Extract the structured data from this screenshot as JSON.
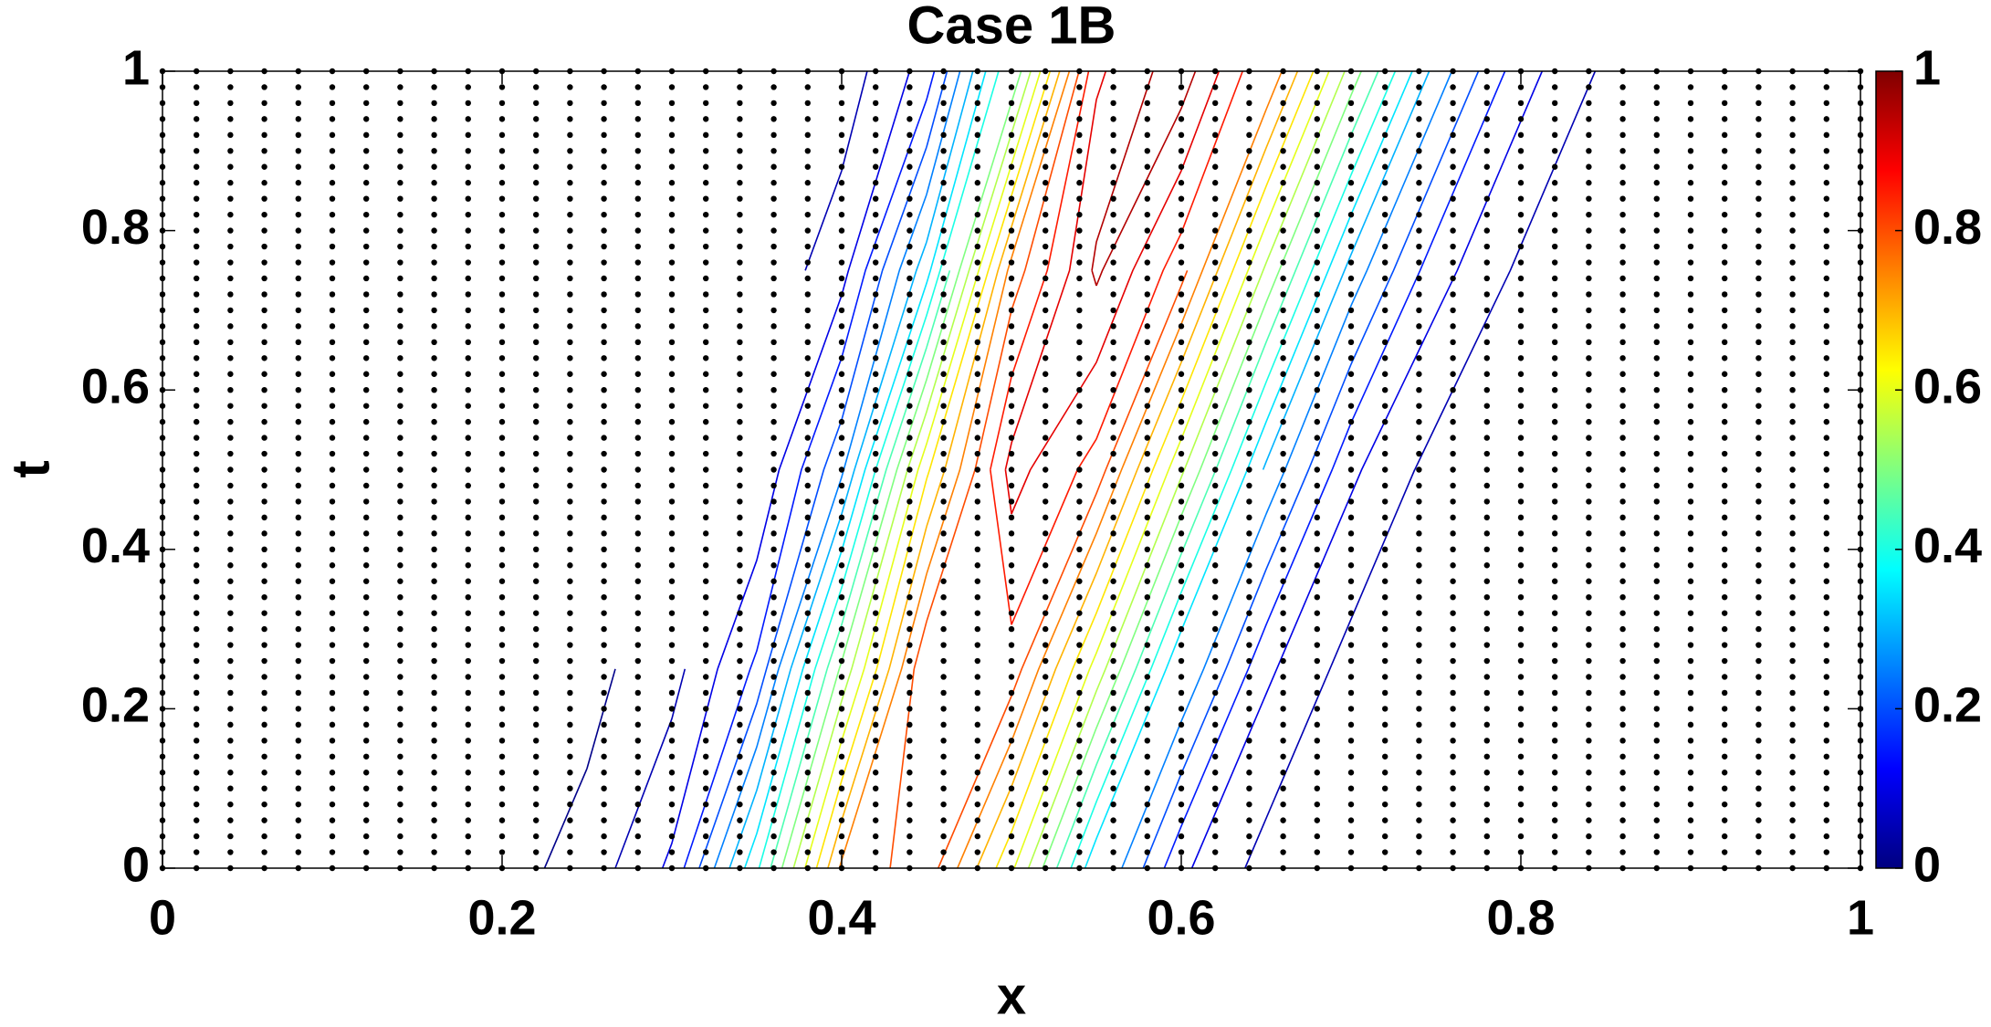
{
  "chart_data": {
    "type": "contour",
    "title": "Case 1B",
    "x_label": "x",
    "y_label": "t",
    "xlim": [
      0,
      1
    ],
    "xticks": [
      0,
      0.2,
      0.4,
      0.6,
      0.8,
      1
    ],
    "ylim": [
      0,
      1
    ],
    "yticks": [
      0,
      0.2,
      0.4,
      0.6,
      0.8,
      1
    ],
    "colormap": "jet",
    "clim": [
      0,
      1
    ],
    "cticks": [
      0,
      0.2,
      0.4,
      0.6,
      0.8,
      1
    ],
    "field": {
      "x": [
        0,
        0.05,
        0.1,
        0.15,
        0.2,
        0.25,
        0.3,
        0.35,
        0.4,
        0.45,
        0.5,
        0.55,
        0.6,
        0.65,
        0.7,
        0.75,
        0.8,
        0.85,
        0.9,
        0.95,
        1
      ],
      "t": [
        0,
        0.25,
        0.5,
        0.75,
        1
      ],
      "z": [
        [
          0,
          0,
          0,
          0,
          0,
          0.02,
          0.11,
          0.39,
          0.76,
          0.83,
          0.61,
          0.31,
          0.11,
          0.03,
          0.01,
          0,
          0,
          0,
          0,
          0,
          0
        ],
        [
          0,
          0,
          0,
          0,
          0,
          0,
          0.03,
          0.16,
          0.51,
          0.85,
          0.83,
          0.58,
          0.3,
          0.11,
          0.03,
          0.01,
          0,
          0,
          0,
          0,
          0
        ],
        [
          0,
          0,
          0,
          0,
          0,
          0,
          0.01,
          0.05,
          0.24,
          0.64,
          0.92,
          0.83,
          0.56,
          0.29,
          0.11,
          0.03,
          0.01,
          0,
          0,
          0,
          0
        ],
        [
          0,
          0,
          0,
          0,
          0,
          0,
          0,
          0.01,
          0.08,
          0.33,
          0.77,
          0.96,
          0.82,
          0.54,
          0.28,
          0.12,
          0.04,
          0.01,
          0,
          0,
          0
        ],
        [
          0,
          0,
          0,
          0,
          0,
          0,
          0,
          0,
          0.02,
          0.12,
          0.45,
          0.89,
          0.98,
          0.8,
          0.53,
          0.28,
          0.12,
          0.04,
          0.01,
          0,
          0
        ]
      ]
    },
    "contour_levels": [
      0.01,
      0.05,
      0.1,
      0.15,
      0.2,
      0.25,
      0.3,
      0.35,
      0.4,
      0.45,
      0.5,
      0.55,
      0.6,
      0.65,
      0.7,
      0.75,
      0.8,
      0.85,
      0.9,
      0.95
    ],
    "grid_points": {
      "color": "#000000",
      "x": [
        0,
        0.02,
        0.04,
        0.06,
        0.08,
        0.1,
        0.12,
        0.14,
        0.16,
        0.18,
        0.2,
        0.22,
        0.24,
        0.26,
        0.28,
        0.3,
        0.32,
        0.34,
        0.36,
        0.38,
        0.4,
        0.42,
        0.44,
        0.46,
        0.48,
        0.5,
        0.52,
        0.54,
        0.56,
        0.58,
        0.6,
        0.62,
        0.64,
        0.66,
        0.68,
        0.7,
        0.72,
        0.74,
        0.76,
        0.78,
        0.8,
        0.82,
        0.84,
        0.86,
        0.88,
        0.9,
        0.92,
        0.94,
        0.96,
        0.98,
        1
      ],
      "t": [
        0,
        0.02,
        0.04,
        0.06,
        0.08,
        0.1,
        0.12,
        0.14,
        0.16,
        0.18,
        0.2,
        0.22,
        0.24,
        0.26,
        0.28,
        0.3,
        0.32,
        0.34,
        0.36,
        0.38,
        0.4,
        0.42,
        0.44,
        0.46,
        0.48,
        0.5,
        0.52,
        0.54,
        0.56,
        0.58,
        0.6,
        0.62,
        0.64,
        0.66,
        0.68,
        0.7,
        0.72,
        0.74,
        0.76,
        0.78,
        0.8,
        0.82,
        0.84,
        0.86,
        0.88,
        0.9,
        0.92,
        0.94,
        0.96,
        0.98,
        1
      ]
    }
  }
}
